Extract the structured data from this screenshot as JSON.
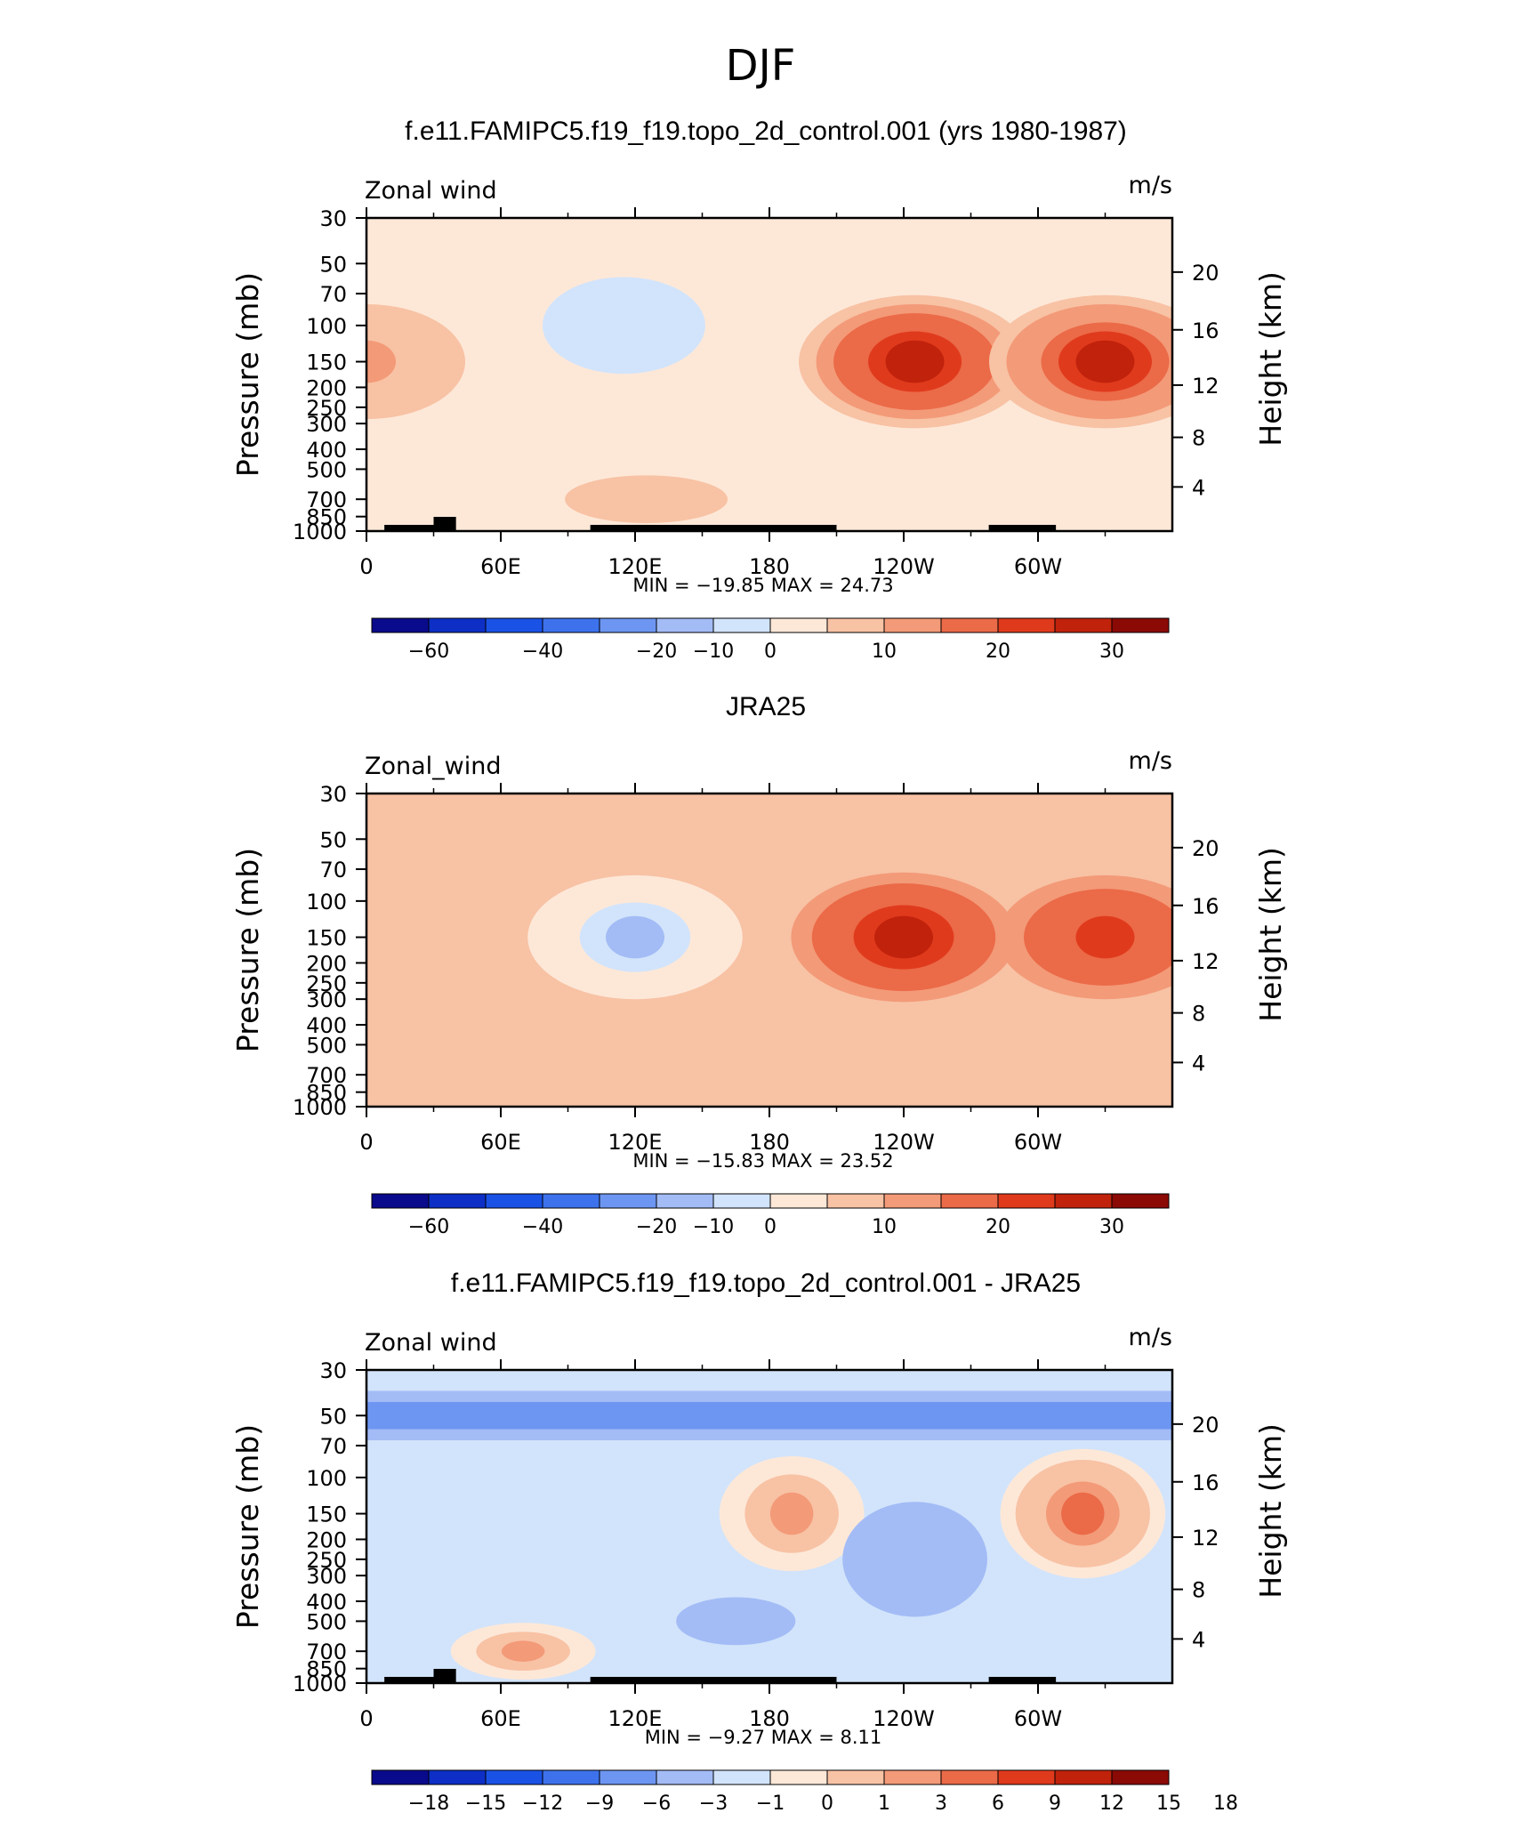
{
  "title": "DJF",
  "colors": {
    "cmap14": [
      "#0a0a8c",
      "#0d2fc6",
      "#1a52e6",
      "#3d72ec",
      "#6d96f2",
      "#a3bcf6",
      "#d2e4fb",
      "#fde8d8",
      "#f8c2a4",
      "#f39a78",
      "#eb6a48",
      "#e03a1c",
      "#c0220c",
      "#8b0a06"
    ],
    "land": "#000000"
  },
  "chart_data": [
    {
      "type": "heatmap",
      "title": "f.e11.FAMIPC5.f19_f19.topo_2d_control.001 (yrs 1980-1987)",
      "left_label": "Zonal wind",
      "right_label": "m/s",
      "ylabel": "Pressure (mb)",
      "ylabel_right": "Height (km)",
      "x_ticks": [
        "0",
        "60E",
        "120E",
        "180",
        "120W",
        "60W"
      ],
      "x_tick_values": [
        0,
        60,
        120,
        180,
        240,
        300
      ],
      "xlim": [
        0,
        360
      ],
      "y_ticks": [
        "30",
        "50",
        "70",
        "100",
        "150",
        "200",
        "250",
        "300",
        "400",
        "500",
        "700",
        "850",
        "1000"
      ],
      "y_tick_values": [
        30,
        50,
        70,
        100,
        150,
        200,
        250,
        300,
        400,
        500,
        700,
        850,
        1000
      ],
      "ylim": [
        1000,
        30
      ],
      "yscale": "log",
      "height_ticks": [
        "4",
        "8",
        "12",
        "16",
        "20"
      ],
      "stats": "MIN = −19.85   MAX =   24.73",
      "min": -19.85,
      "max": 24.73,
      "colorbar_labels": [
        "−60",
        "−40",
        "−20",
        "−10",
        "0",
        "10",
        "20",
        "30"
      ],
      "colorbar_levels": [
        -70,
        -60,
        -50,
        -40,
        -30,
        -20,
        -10,
        -5,
        0,
        5,
        10,
        15,
        20,
        25,
        30
      ],
      "background_level": -2,
      "features": [
        {
          "kind": "positive",
          "lon": 115,
          "p": 100,
          "value": -10
        },
        {
          "kind": "positive",
          "lon": 245,
          "p": 150,
          "value": 22
        },
        {
          "kind": "positive",
          "lon": 330,
          "p": 150,
          "value": 20
        },
        {
          "kind": "positive",
          "lon": 0,
          "p": 150,
          "value": 8
        },
        {
          "kind": "positive",
          "lon": 125,
          "p": 700,
          "value": 3
        }
      ]
    },
    {
      "type": "heatmap",
      "title": "JRA25",
      "left_label": "Zonal_wind",
      "right_label": "m/s",
      "ylabel": "Pressure (mb)",
      "ylabel_right": "Height (km)",
      "x_ticks": [
        "0",
        "60E",
        "120E",
        "180",
        "120W",
        "60W"
      ],
      "x_tick_values": [
        0,
        60,
        120,
        180,
        240,
        300
      ],
      "xlim": [
        0,
        360
      ],
      "y_ticks": [
        "30",
        "50",
        "70",
        "100",
        "150",
        "200",
        "250",
        "300",
        "400",
        "500",
        "700",
        "850",
        "1000"
      ],
      "y_tick_values": [
        30,
        50,
        70,
        100,
        150,
        200,
        250,
        300,
        400,
        500,
        700,
        850,
        1000
      ],
      "ylim": [
        1000,
        30
      ],
      "yscale": "log",
      "height_ticks": [
        "4",
        "8",
        "12",
        "16",
        "20"
      ],
      "stats": "MIN = −15.83   MAX =   23.52",
      "min": -15.83,
      "max": 23.52,
      "colorbar_labels": [
        "−60",
        "−40",
        "−20",
        "−10",
        "0",
        "10",
        "20",
        "30"
      ],
      "colorbar_levels": [
        -70,
        -60,
        -50,
        -40,
        -30,
        -20,
        -10,
        -5,
        0,
        5,
        10,
        15,
        20,
        25,
        30
      ],
      "background_level": 2,
      "features": [
        {
          "kind": "negative",
          "lon": 120,
          "p": 150,
          "value": -12
        },
        {
          "kind": "positive",
          "lon": 240,
          "p": 150,
          "value": 23
        },
        {
          "kind": "positive",
          "lon": 330,
          "p": 150,
          "value": 18
        },
        {
          "kind": "positive",
          "lon": 120,
          "p": 700,
          "value": 4
        }
      ]
    },
    {
      "type": "heatmap",
      "title": "f.e11.FAMIPC5.f19_f19.topo_2d_control.001 - JRA25",
      "left_label": "Zonal wind",
      "right_label": "m/s",
      "ylabel": "Pressure (mb)",
      "ylabel_right": "Height (km)",
      "x_ticks": [
        "0",
        "60E",
        "120E",
        "180",
        "120W",
        "60W"
      ],
      "x_tick_values": [
        0,
        60,
        120,
        180,
        240,
        300
      ],
      "xlim": [
        0,
        360
      ],
      "y_ticks": [
        "30",
        "50",
        "70",
        "100",
        "150",
        "200",
        "250",
        "300",
        "400",
        "500",
        "700",
        "850",
        "1000"
      ],
      "y_tick_values": [
        30,
        50,
        70,
        100,
        150,
        200,
        250,
        300,
        400,
        500,
        700,
        850,
        1000
      ],
      "ylim": [
        1000,
        30
      ],
      "yscale": "log",
      "height_ticks": [
        "4",
        "8",
        "12",
        "16",
        "20"
      ],
      "stats": "MIN =   −9.27   MAX =     8.11",
      "min": -9.27,
      "max": 8.11,
      "colorbar_labels": [
        "−18",
        "−15",
        "−12",
        "−9",
        "−6",
        "−3",
        "−1",
        "0",
        "1",
        "3",
        "6",
        "9",
        "12",
        "15",
        "18"
      ],
      "colorbar_levels": [
        -21,
        -18,
        -15,
        -12,
        -9,
        -6,
        -3,
        -1,
        0,
        1,
        3,
        6,
        9,
        12,
        15,
        18
      ],
      "background_level": -2,
      "features": [
        {
          "kind": "band",
          "p": 50,
          "value": -7
        },
        {
          "kind": "positive",
          "lon": 190,
          "p": 150,
          "value": 3
        },
        {
          "kind": "positive",
          "lon": 320,
          "p": 150,
          "value": 6
        },
        {
          "kind": "negative",
          "lon": 245,
          "p": 250,
          "value": -6
        },
        {
          "kind": "negative",
          "lon": 165,
          "p": 500,
          "value": -5
        },
        {
          "kind": "positive",
          "lon": 70,
          "p": 700,
          "value": 3
        }
      ]
    }
  ]
}
